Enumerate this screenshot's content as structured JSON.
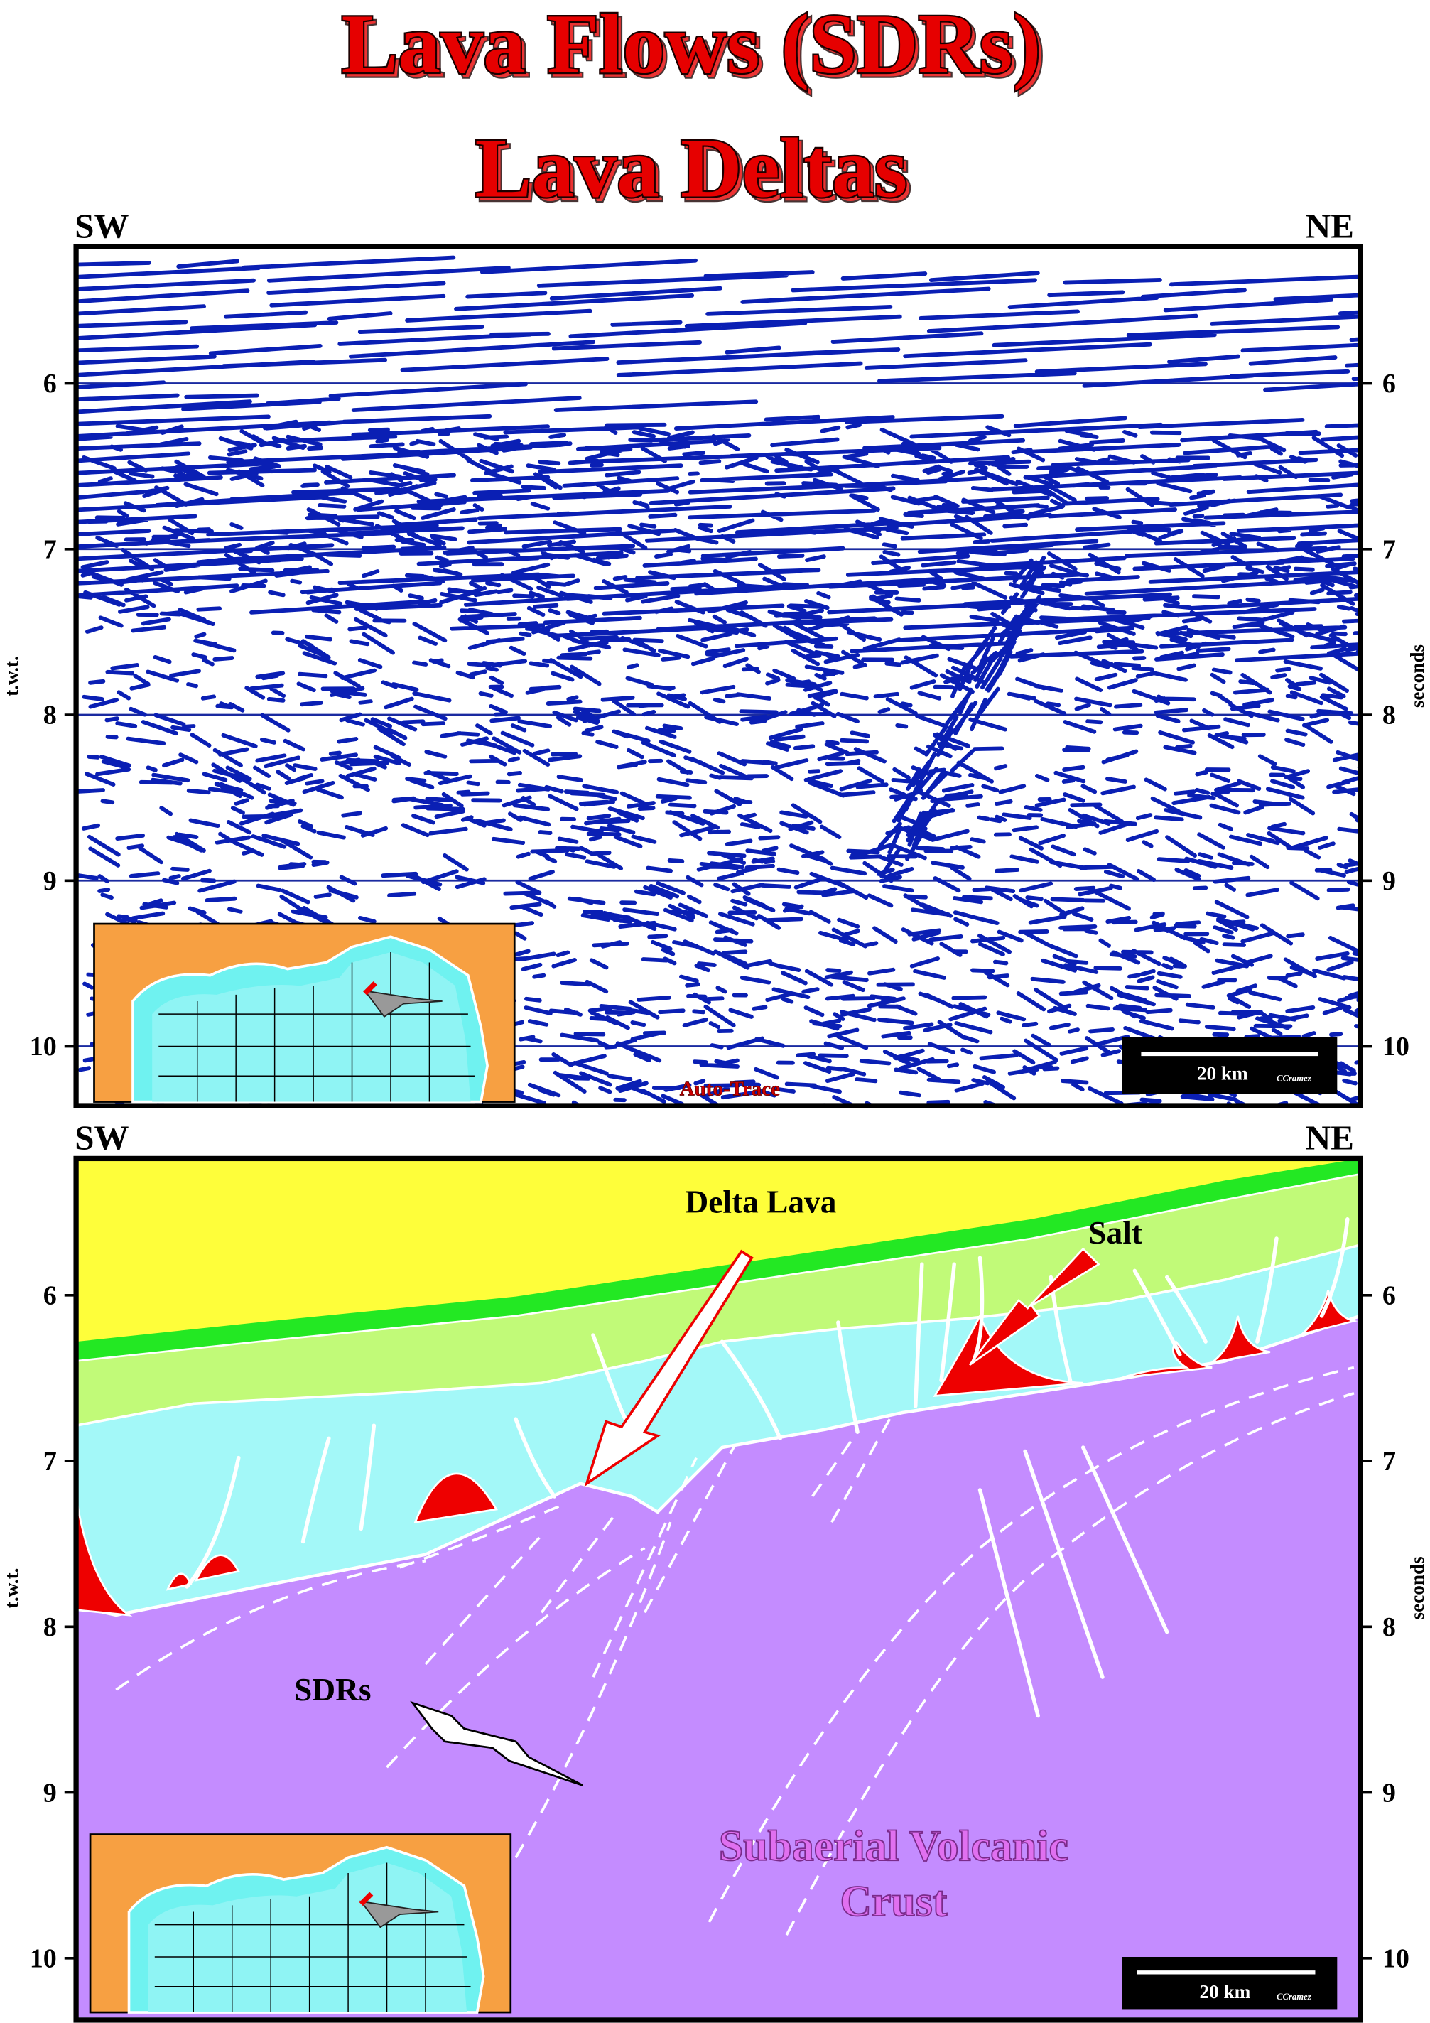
{
  "title": [
    "Lava Flows (SDRs)",
    "Lava Deltas"
  ],
  "panels": [
    {
      "left_label": "SW",
      "right_label": "NE",
      "y_axis_left": "t.w.t.",
      "y_axis_right": "seconds",
      "ticks": [
        "6",
        "7",
        "8",
        "9",
        "10"
      ],
      "scale_bar": "20 km",
      "credit": "CCramez",
      "caption": "Auto-Trace"
    },
    {
      "left_label": "SW",
      "right_label": "NE",
      "y_axis_left": "t.w.t.",
      "y_axis_right": "seconds",
      "ticks": [
        "6",
        "7",
        "8",
        "9",
        "10"
      ],
      "scale_bar": "20 km",
      "credit": "CCramez",
      "annotations": [
        "Delta Lava",
        "Salt",
        "SDRs"
      ],
      "caption": [
        "Subaerial Volcanic",
        "Crust"
      ]
    }
  ]
}
